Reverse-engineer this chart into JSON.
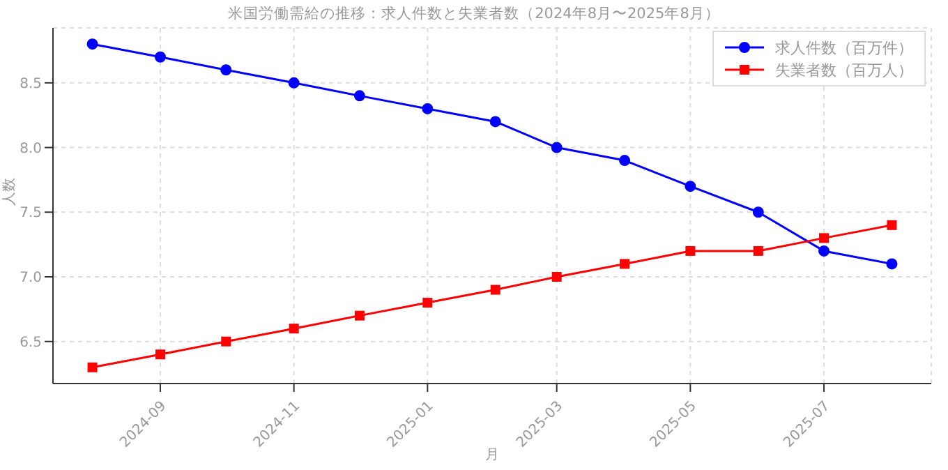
{
  "chart_data": {
    "type": "line",
    "title": "米国労働需給の推移：求人件数と失業者数（2024年8月〜2025年8月）",
    "xlabel": "月",
    "ylabel": "人数",
    "x": [
      "2024-08-01",
      "2024-09-01",
      "2024-10-01",
      "2024-11-01",
      "2024-12-01",
      "2025-01-01",
      "2025-02-01",
      "2025-03-01",
      "2025-04-01",
      "2025-05-01",
      "2025-06-01",
      "2025-07-01",
      "2025-08-01"
    ],
    "series": [
      {
        "name": "求人件数（百万件）",
        "color": "#0000ff",
        "marker": "circle",
        "values": [
          8.8,
          8.7,
          8.6,
          8.5,
          8.4,
          8.3,
          8.2,
          8.0,
          7.9,
          7.7,
          7.5,
          7.2,
          7.1
        ]
      },
      {
        "name": "失業者数（百万人）",
        "color": "#ff0000",
        "marker": "square",
        "values": [
          6.3,
          6.4,
          6.5,
          6.6,
          6.7,
          6.8,
          6.9,
          7.0,
          7.1,
          7.2,
          7.2,
          7.3,
          7.4
        ]
      }
    ],
    "xlim": [
      "2024-07-14",
      "2025-08-19"
    ],
    "xticks": [
      {
        "value": "2024-09-01",
        "label": "2024-09"
      },
      {
        "value": "2024-11-01",
        "label": "2024-11"
      },
      {
        "value": "2025-01-01",
        "label": "2025-01"
      },
      {
        "value": "2025-03-01",
        "label": "2025-03"
      },
      {
        "value": "2025-05-01",
        "label": "2025-05"
      },
      {
        "value": "2025-07-01",
        "label": "2025-07"
      }
    ],
    "ylim": [
      6.175,
      8.925
    ],
    "yticks": [
      {
        "value": 6.5,
        "label": "6.5"
      },
      {
        "value": 7,
        "label": "7.0"
      },
      {
        "value": 7.5,
        "label": "7.5"
      },
      {
        "value": 8,
        "label": "8.0"
      },
      {
        "value": 8.5,
        "label": "8.5"
      }
    ],
    "grid": true,
    "legend": "top right",
    "line_style": "solid"
  }
}
